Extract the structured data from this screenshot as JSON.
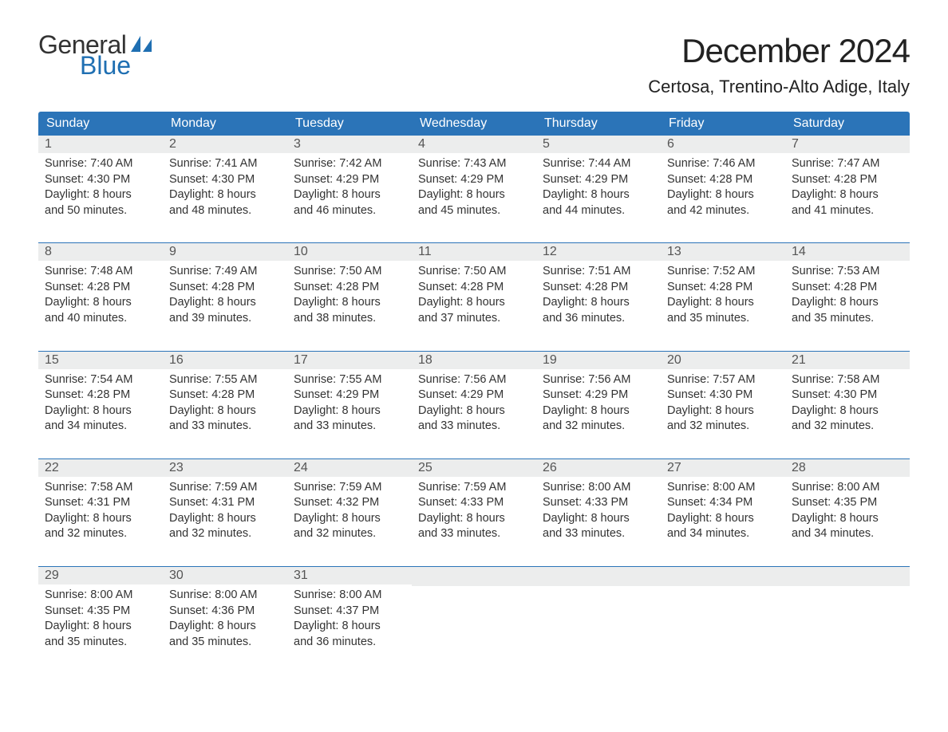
{
  "logo": {
    "word1": "General",
    "word2": "Blue",
    "word1_color": "#333333",
    "word2_color": "#1f6fb2",
    "sail_color": "#1f6fb2"
  },
  "title": "December 2024",
  "location": "Certosa, Trentino-Alto Adige, Italy",
  "colors": {
    "header_bg": "#2b74b8",
    "header_text": "#ffffff",
    "daynum_bg": "#eceded",
    "daynum_text": "#555555",
    "body_text": "#333333",
    "week_divider": "#2b74b8",
    "page_bg": "#ffffff"
  },
  "typography": {
    "title_fontsize": 42,
    "location_fontsize": 22,
    "dayheader_fontsize": 16,
    "daynum_fontsize": 16,
    "content_fontsize": 14.5,
    "font_family": "Arial"
  },
  "day_headers": [
    "Sunday",
    "Monday",
    "Tuesday",
    "Wednesday",
    "Thursday",
    "Friday",
    "Saturday"
  ],
  "weeks": [
    [
      {
        "num": "1",
        "sunrise": "Sunrise: 7:40 AM",
        "sunset": "Sunset: 4:30 PM",
        "daylight1": "Daylight: 8 hours",
        "daylight2": "and 50 minutes."
      },
      {
        "num": "2",
        "sunrise": "Sunrise: 7:41 AM",
        "sunset": "Sunset: 4:30 PM",
        "daylight1": "Daylight: 8 hours",
        "daylight2": "and 48 minutes."
      },
      {
        "num": "3",
        "sunrise": "Sunrise: 7:42 AM",
        "sunset": "Sunset: 4:29 PM",
        "daylight1": "Daylight: 8 hours",
        "daylight2": "and 46 minutes."
      },
      {
        "num": "4",
        "sunrise": "Sunrise: 7:43 AM",
        "sunset": "Sunset: 4:29 PM",
        "daylight1": "Daylight: 8 hours",
        "daylight2": "and 45 minutes."
      },
      {
        "num": "5",
        "sunrise": "Sunrise: 7:44 AM",
        "sunset": "Sunset: 4:29 PM",
        "daylight1": "Daylight: 8 hours",
        "daylight2": "and 44 minutes."
      },
      {
        "num": "6",
        "sunrise": "Sunrise: 7:46 AM",
        "sunset": "Sunset: 4:28 PM",
        "daylight1": "Daylight: 8 hours",
        "daylight2": "and 42 minutes."
      },
      {
        "num": "7",
        "sunrise": "Sunrise: 7:47 AM",
        "sunset": "Sunset: 4:28 PM",
        "daylight1": "Daylight: 8 hours",
        "daylight2": "and 41 minutes."
      }
    ],
    [
      {
        "num": "8",
        "sunrise": "Sunrise: 7:48 AM",
        "sunset": "Sunset: 4:28 PM",
        "daylight1": "Daylight: 8 hours",
        "daylight2": "and 40 minutes."
      },
      {
        "num": "9",
        "sunrise": "Sunrise: 7:49 AM",
        "sunset": "Sunset: 4:28 PM",
        "daylight1": "Daylight: 8 hours",
        "daylight2": "and 39 minutes."
      },
      {
        "num": "10",
        "sunrise": "Sunrise: 7:50 AM",
        "sunset": "Sunset: 4:28 PM",
        "daylight1": "Daylight: 8 hours",
        "daylight2": "and 38 minutes."
      },
      {
        "num": "11",
        "sunrise": "Sunrise: 7:50 AM",
        "sunset": "Sunset: 4:28 PM",
        "daylight1": "Daylight: 8 hours",
        "daylight2": "and 37 minutes."
      },
      {
        "num": "12",
        "sunrise": "Sunrise: 7:51 AM",
        "sunset": "Sunset: 4:28 PM",
        "daylight1": "Daylight: 8 hours",
        "daylight2": "and 36 minutes."
      },
      {
        "num": "13",
        "sunrise": "Sunrise: 7:52 AM",
        "sunset": "Sunset: 4:28 PM",
        "daylight1": "Daylight: 8 hours",
        "daylight2": "and 35 minutes."
      },
      {
        "num": "14",
        "sunrise": "Sunrise: 7:53 AM",
        "sunset": "Sunset: 4:28 PM",
        "daylight1": "Daylight: 8 hours",
        "daylight2": "and 35 minutes."
      }
    ],
    [
      {
        "num": "15",
        "sunrise": "Sunrise: 7:54 AM",
        "sunset": "Sunset: 4:28 PM",
        "daylight1": "Daylight: 8 hours",
        "daylight2": "and 34 minutes."
      },
      {
        "num": "16",
        "sunrise": "Sunrise: 7:55 AM",
        "sunset": "Sunset: 4:28 PM",
        "daylight1": "Daylight: 8 hours",
        "daylight2": "and 33 minutes."
      },
      {
        "num": "17",
        "sunrise": "Sunrise: 7:55 AM",
        "sunset": "Sunset: 4:29 PM",
        "daylight1": "Daylight: 8 hours",
        "daylight2": "and 33 minutes."
      },
      {
        "num": "18",
        "sunrise": "Sunrise: 7:56 AM",
        "sunset": "Sunset: 4:29 PM",
        "daylight1": "Daylight: 8 hours",
        "daylight2": "and 33 minutes."
      },
      {
        "num": "19",
        "sunrise": "Sunrise: 7:56 AM",
        "sunset": "Sunset: 4:29 PM",
        "daylight1": "Daylight: 8 hours",
        "daylight2": "and 32 minutes."
      },
      {
        "num": "20",
        "sunrise": "Sunrise: 7:57 AM",
        "sunset": "Sunset: 4:30 PM",
        "daylight1": "Daylight: 8 hours",
        "daylight2": "and 32 minutes."
      },
      {
        "num": "21",
        "sunrise": "Sunrise: 7:58 AM",
        "sunset": "Sunset: 4:30 PM",
        "daylight1": "Daylight: 8 hours",
        "daylight2": "and 32 minutes."
      }
    ],
    [
      {
        "num": "22",
        "sunrise": "Sunrise: 7:58 AM",
        "sunset": "Sunset: 4:31 PM",
        "daylight1": "Daylight: 8 hours",
        "daylight2": "and 32 minutes."
      },
      {
        "num": "23",
        "sunrise": "Sunrise: 7:59 AM",
        "sunset": "Sunset: 4:31 PM",
        "daylight1": "Daylight: 8 hours",
        "daylight2": "and 32 minutes."
      },
      {
        "num": "24",
        "sunrise": "Sunrise: 7:59 AM",
        "sunset": "Sunset: 4:32 PM",
        "daylight1": "Daylight: 8 hours",
        "daylight2": "and 32 minutes."
      },
      {
        "num": "25",
        "sunrise": "Sunrise: 7:59 AM",
        "sunset": "Sunset: 4:33 PM",
        "daylight1": "Daylight: 8 hours",
        "daylight2": "and 33 minutes."
      },
      {
        "num": "26",
        "sunrise": "Sunrise: 8:00 AM",
        "sunset": "Sunset: 4:33 PM",
        "daylight1": "Daylight: 8 hours",
        "daylight2": "and 33 minutes."
      },
      {
        "num": "27",
        "sunrise": "Sunrise: 8:00 AM",
        "sunset": "Sunset: 4:34 PM",
        "daylight1": "Daylight: 8 hours",
        "daylight2": "and 34 minutes."
      },
      {
        "num": "28",
        "sunrise": "Sunrise: 8:00 AM",
        "sunset": "Sunset: 4:35 PM",
        "daylight1": "Daylight: 8 hours",
        "daylight2": "and 34 minutes."
      }
    ],
    [
      {
        "num": "29",
        "sunrise": "Sunrise: 8:00 AM",
        "sunset": "Sunset: 4:35 PM",
        "daylight1": "Daylight: 8 hours",
        "daylight2": "and 35 minutes."
      },
      {
        "num": "30",
        "sunrise": "Sunrise: 8:00 AM",
        "sunset": "Sunset: 4:36 PM",
        "daylight1": "Daylight: 8 hours",
        "daylight2": "and 35 minutes."
      },
      {
        "num": "31",
        "sunrise": "Sunrise: 8:00 AM",
        "sunset": "Sunset: 4:37 PM",
        "daylight1": "Daylight: 8 hours",
        "daylight2": "and 36 minutes."
      },
      {
        "empty": true
      },
      {
        "empty": true
      },
      {
        "empty": true
      },
      {
        "empty": true
      }
    ]
  ]
}
